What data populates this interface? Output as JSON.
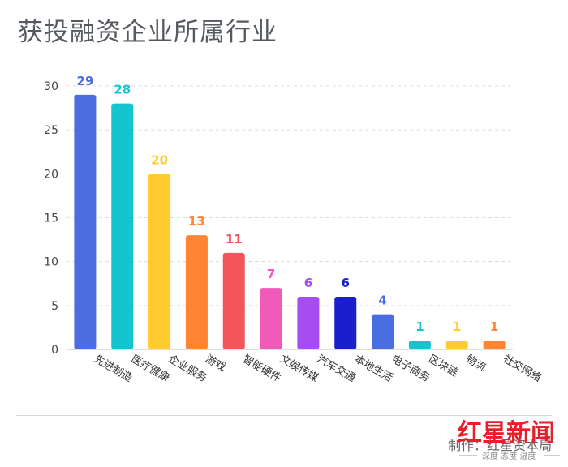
{
  "title": "获投融资企业所属行业",
  "credit": "制作：红星资本局",
  "logo": {
    "text": "红星新闻",
    "tagline": "深度 态度 温度"
  },
  "colors": {
    "先进制造": "#4a6ee0",
    "医疗健康": "#14c4cf",
    "企业服务": "#ffcb2f",
    "游戏": "#ff8533",
    "智能硬件": "#f2555a",
    "文娱传媒": "#f05ab8",
    "汽车交通": "#a64cf0",
    "本地生活": "#1a1fcc",
    "电子商务": "#4a6ee0",
    "区块链": "#14c4cf",
    "物流": "#ffcb2f",
    "社交网络": "#ff8533"
  },
  "chart_data": {
    "type": "bar",
    "title": "获投融资企业所属行业",
    "categories": [
      "先进制造",
      "医疗健康",
      "企业服务",
      "游戏",
      "智能硬件",
      "文娱传媒",
      "汽车交通",
      "本地生活",
      "电子商务",
      "区块链",
      "物流",
      "社交网络"
    ],
    "values": [
      29,
      28,
      20,
      13,
      11,
      7,
      6,
      6,
      4,
      1,
      1,
      1
    ],
    "ylim": [
      0,
      30
    ],
    "yticks": [
      0,
      5,
      10,
      15,
      20,
      25,
      30
    ],
    "grid": true,
    "xlabel": "",
    "ylabel": ""
  }
}
